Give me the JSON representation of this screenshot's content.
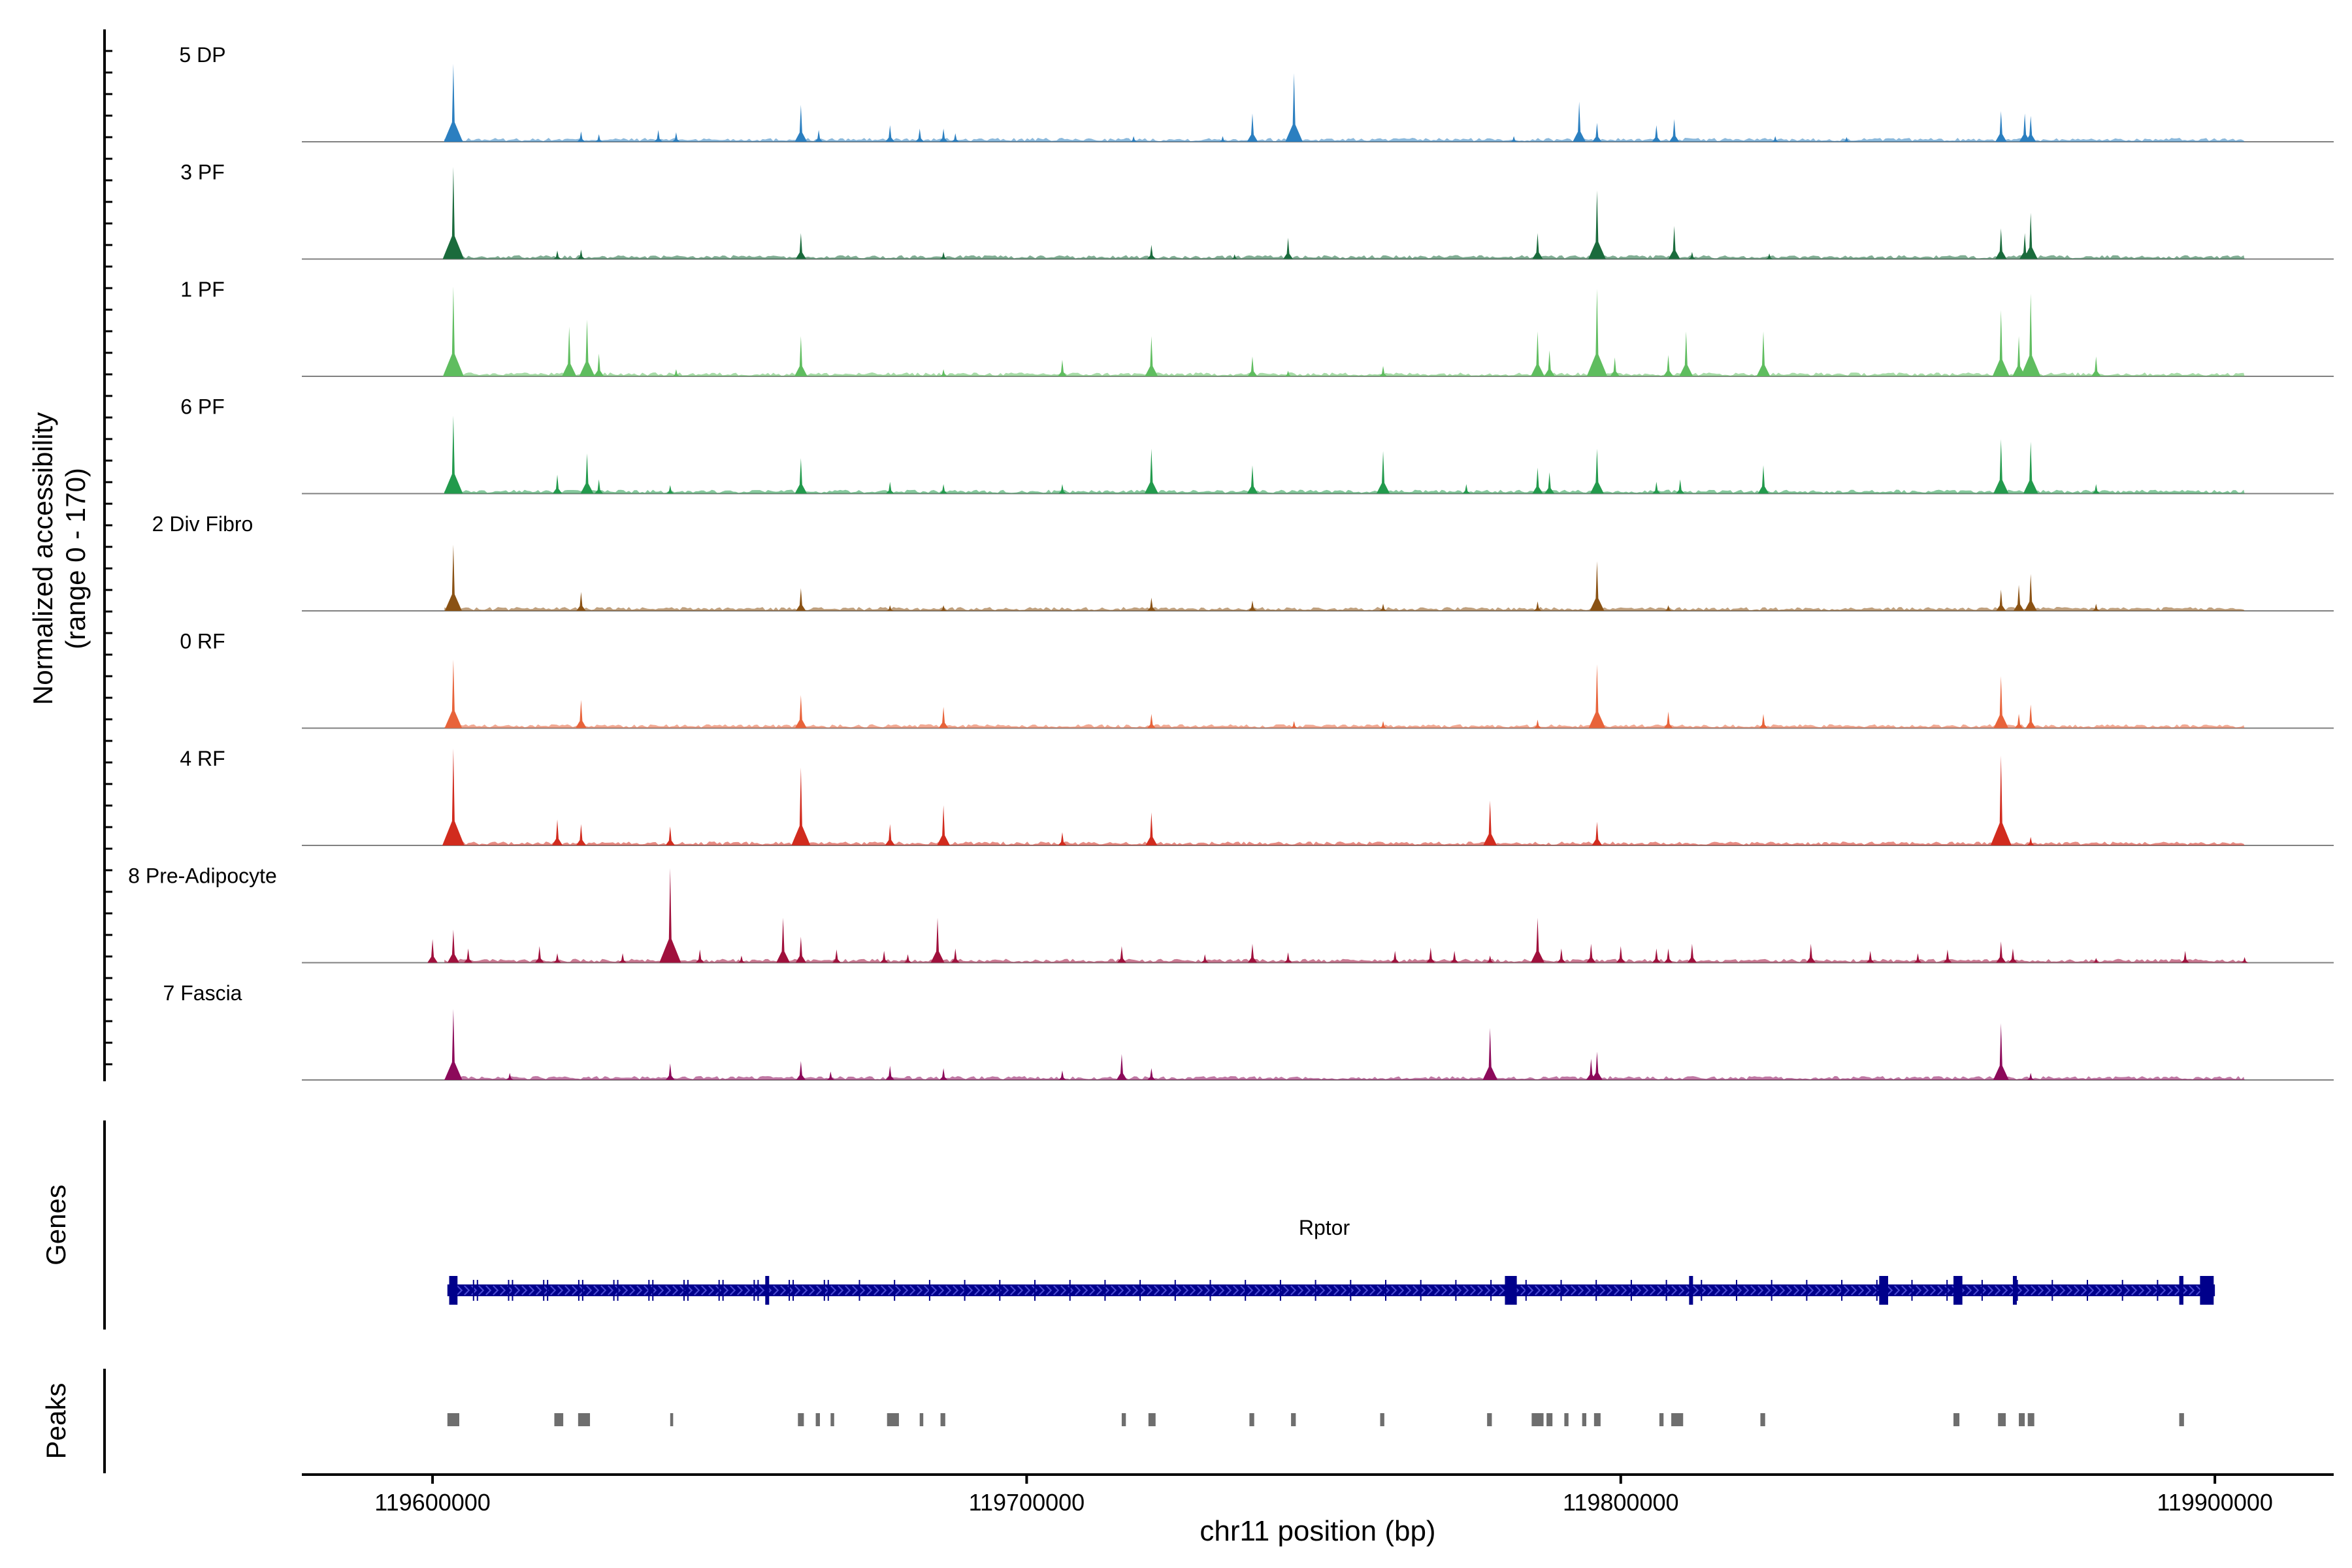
{
  "chart_data": {
    "type": "area",
    "title": "",
    "ylabel_line1": "Normalized accessibility",
    "ylabel_line2": "(range 0 - 170)",
    "y_range": [
      0,
      170
    ],
    "xlabel": "chr11 position (bp)",
    "x_range": [
      119578000,
      119920000
    ],
    "x_ticks": [
      119600000,
      119700000,
      119800000,
      119900000
    ],
    "x_tick_labels": [
      "119600000",
      "119700000",
      "119800000",
      "119900000"
    ],
    "tracks": [
      {
        "name": "5 DP",
        "color": "#2b7fc0",
        "peaks": [
          [
            119603500,
            165
          ],
          [
            119625000,
            22
          ],
          [
            119628000,
            16
          ],
          [
            119638000,
            25
          ],
          [
            119641000,
            20
          ],
          [
            119662000,
            78
          ],
          [
            119665000,
            25
          ],
          [
            119677000,
            35
          ],
          [
            119682000,
            28
          ],
          [
            119686000,
            28
          ],
          [
            119688000,
            18
          ],
          [
            119718000,
            12
          ],
          [
            119733000,
            12
          ],
          [
            119738000,
            60
          ],
          [
            119745000,
            145
          ],
          [
            119782000,
            12
          ],
          [
            119793000,
            85
          ],
          [
            119796000,
            40
          ],
          [
            119806000,
            35
          ],
          [
            119809000,
            48
          ],
          [
            119826000,
            12
          ],
          [
            119838000,
            10
          ],
          [
            119864000,
            65
          ],
          [
            119868000,
            60
          ],
          [
            119869000,
            55
          ]
        ]
      },
      {
        "name": "3 PF",
        "color": "#1a6b3c",
        "peaks": [
          [
            119603500,
            195
          ],
          [
            119621000,
            18
          ],
          [
            119625000,
            20
          ],
          [
            119662000,
            55
          ],
          [
            119686000,
            15
          ],
          [
            119721000,
            30
          ],
          [
            119735000,
            10
          ],
          [
            119744000,
            45
          ],
          [
            119786000,
            55
          ],
          [
            119796000,
            145
          ],
          [
            119809000,
            70
          ],
          [
            119812000,
            15
          ],
          [
            119825000,
            12
          ],
          [
            119864000,
            65
          ],
          [
            119868000,
            55
          ],
          [
            119869000,
            98
          ]
        ]
      },
      {
        "name": "1 PF",
        "color": "#5fbd5f",
        "peaks": [
          [
            119603500,
            190
          ],
          [
            119623000,
            105
          ],
          [
            119626000,
            120
          ],
          [
            119628000,
            48
          ],
          [
            119641000,
            15
          ],
          [
            119662000,
            85
          ],
          [
            119686000,
            15
          ],
          [
            119706000,
            35
          ],
          [
            119721000,
            85
          ],
          [
            119738000,
            42
          ],
          [
            119744000,
            12
          ],
          [
            119760000,
            22
          ],
          [
            119786000,
            95
          ],
          [
            119788000,
            55
          ],
          [
            119796000,
            185
          ],
          [
            119799000,
            40
          ],
          [
            119808000,
            45
          ],
          [
            119811000,
            95
          ],
          [
            119824000,
            95
          ],
          [
            119864000,
            140
          ],
          [
            119867000,
            85
          ],
          [
            119869000,
            175
          ],
          [
            119880000,
            42
          ]
        ]
      },
      {
        "name": "6 PF",
        "color": "#229a4c",
        "peaks": [
          [
            119603500,
            165
          ],
          [
            119621000,
            40
          ],
          [
            119626000,
            85
          ],
          [
            119628000,
            30
          ],
          [
            119640000,
            18
          ],
          [
            119662000,
            75
          ],
          [
            119677000,
            25
          ],
          [
            119686000,
            20
          ],
          [
            119706000,
            20
          ],
          [
            119721000,
            95
          ],
          [
            119738000,
            60
          ],
          [
            119760000,
            90
          ],
          [
            119774000,
            20
          ],
          [
            119786000,
            55
          ],
          [
            119788000,
            45
          ],
          [
            119796000,
            95
          ],
          [
            119806000,
            25
          ],
          [
            119810000,
            30
          ],
          [
            119824000,
            60
          ],
          [
            119864000,
            115
          ],
          [
            119869000,
            110
          ],
          [
            119880000,
            20
          ]
        ]
      },
      {
        "name": "2 Div Fibro",
        "color": "#8a5214",
        "peaks": [
          [
            119603500,
            140
          ],
          [
            119625000,
            40
          ],
          [
            119662000,
            48
          ],
          [
            119677000,
            12
          ],
          [
            119686000,
            12
          ],
          [
            119721000,
            28
          ],
          [
            119738000,
            22
          ],
          [
            119760000,
            15
          ],
          [
            119786000,
            20
          ],
          [
            119796000,
            105
          ],
          [
            119808000,
            12
          ],
          [
            119864000,
            45
          ],
          [
            119867000,
            55
          ],
          [
            119869000,
            78
          ],
          [
            119880000,
            15
          ]
        ]
      },
      {
        "name": "0 RF",
        "color": "#e8633a",
        "peaks": [
          [
            119603500,
            145
          ],
          [
            119625000,
            60
          ],
          [
            119662000,
            70
          ],
          [
            119686000,
            45
          ],
          [
            119721000,
            30
          ],
          [
            119745000,
            15
          ],
          [
            119760000,
            15
          ],
          [
            119786000,
            18
          ],
          [
            119796000,
            135
          ],
          [
            119808000,
            35
          ],
          [
            119824000,
            30
          ],
          [
            119864000,
            110
          ],
          [
            119867000,
            30
          ],
          [
            119869000,
            50
          ]
        ]
      },
      {
        "name": "4 RF",
        "color": "#d12b1e",
        "peaks": [
          [
            119603500,
            205
          ],
          [
            119621000,
            55
          ],
          [
            119625000,
            45
          ],
          [
            119640000,
            40
          ],
          [
            119662000,
            165
          ],
          [
            119677000,
            45
          ],
          [
            119686000,
            85
          ],
          [
            119706000,
            28
          ],
          [
            119721000,
            70
          ],
          [
            119778000,
            95
          ],
          [
            119796000,
            50
          ],
          [
            119864000,
            190
          ],
          [
            119869000,
            18
          ]
        ]
      },
      {
        "name": "8 Pre-Adipocyte",
        "color": "#a0103c",
        "peaks": [
          [
            119600000,
            50
          ],
          [
            119603500,
            70
          ],
          [
            119606000,
            30
          ],
          [
            119618000,
            35
          ],
          [
            119621000,
            20
          ],
          [
            119632000,
            20
          ],
          [
            119640000,
            200
          ],
          [
            119645000,
            28
          ],
          [
            119652000,
            15
          ],
          [
            119659000,
            95
          ],
          [
            119662000,
            55
          ],
          [
            119668000,
            28
          ],
          [
            119676000,
            25
          ],
          [
            119680000,
            18
          ],
          [
            119685000,
            95
          ],
          [
            119688000,
            30
          ],
          [
            119716000,
            35
          ],
          [
            119730000,
            18
          ],
          [
            119738000,
            40
          ],
          [
            119744000,
            22
          ],
          [
            119762000,
            25
          ],
          [
            119768000,
            32
          ],
          [
            119772000,
            25
          ],
          [
            119778000,
            15
          ],
          [
            119786000,
            95
          ],
          [
            119790000,
            30
          ],
          [
            119795000,
            40
          ],
          [
            119800000,
            35
          ],
          [
            119806000,
            30
          ],
          [
            119808000,
            30
          ],
          [
            119812000,
            40
          ],
          [
            119832000,
            40
          ],
          [
            119842000,
            25
          ],
          [
            119850000,
            20
          ],
          [
            119855000,
            28
          ],
          [
            119864000,
            45
          ],
          [
            119866000,
            30
          ],
          [
            119880000,
            10
          ],
          [
            119895000,
            25
          ],
          [
            119905000,
            12
          ]
        ]
      },
      {
        "name": "7 Fascia",
        "color": "#8c0a5a",
        "peaks": [
          [
            119603500,
            150
          ],
          [
            119613000,
            15
          ],
          [
            119640000,
            35
          ],
          [
            119662000,
            40
          ],
          [
            119667000,
            18
          ],
          [
            119677000,
            30
          ],
          [
            119686000,
            25
          ],
          [
            119706000,
            20
          ],
          [
            119716000,
            55
          ],
          [
            119721000,
            25
          ],
          [
            119778000,
            110
          ],
          [
            119795000,
            45
          ],
          [
            119796000,
            60
          ],
          [
            119864000,
            120
          ],
          [
            119869000,
            15
          ]
        ]
      }
    ],
    "genes_label": "Genes",
    "gene": {
      "name": "Rptor",
      "strand": "+",
      "start": 119602500,
      "end": 119900000,
      "exons": [
        [
          119602800,
          119604200
        ],
        [
          119656000,
          119656400
        ],
        [
          119780500,
          119782500
        ],
        [
          119811500,
          119812000
        ],
        [
          119843500,
          119845000
        ],
        [
          119856000,
          119857500
        ],
        [
          119866000,
          119866600
        ],
        [
          119894000,
          119894700
        ],
        [
          119897500,
          119899800
        ]
      ]
    },
    "peaks_label": "Peaks",
    "peak_regions": [
      [
        119602500,
        119604500
      ],
      [
        119620500,
        119622000
      ],
      [
        119624500,
        119626500
      ],
      [
        119640000,
        119640500
      ],
      [
        119661500,
        119662500
      ],
      [
        119664500,
        119665200
      ],
      [
        119667000,
        119667600
      ],
      [
        119676500,
        119678500
      ],
      [
        119682000,
        119682600
      ],
      [
        119685500,
        119686300
      ],
      [
        119716000,
        119716700
      ],
      [
        119720500,
        119721700
      ],
      [
        119737500,
        119738300
      ],
      [
        119744500,
        119745300
      ],
      [
        119759500,
        119760200
      ],
      [
        119777500,
        119778300
      ],
      [
        119785000,
        119787000
      ],
      [
        119787500,
        119788500
      ],
      [
        119790500,
        119791200
      ],
      [
        119793500,
        119794200
      ],
      [
        119795500,
        119796600
      ],
      [
        119806500,
        119807200
      ],
      [
        119808500,
        119810500
      ],
      [
        119823500,
        119824300
      ],
      [
        119856000,
        119857000
      ],
      [
        119863500,
        119864800
      ],
      [
        119867000,
        119868000
      ],
      [
        119868500,
        119869600
      ],
      [
        119894000,
        119894800
      ]
    ]
  }
}
